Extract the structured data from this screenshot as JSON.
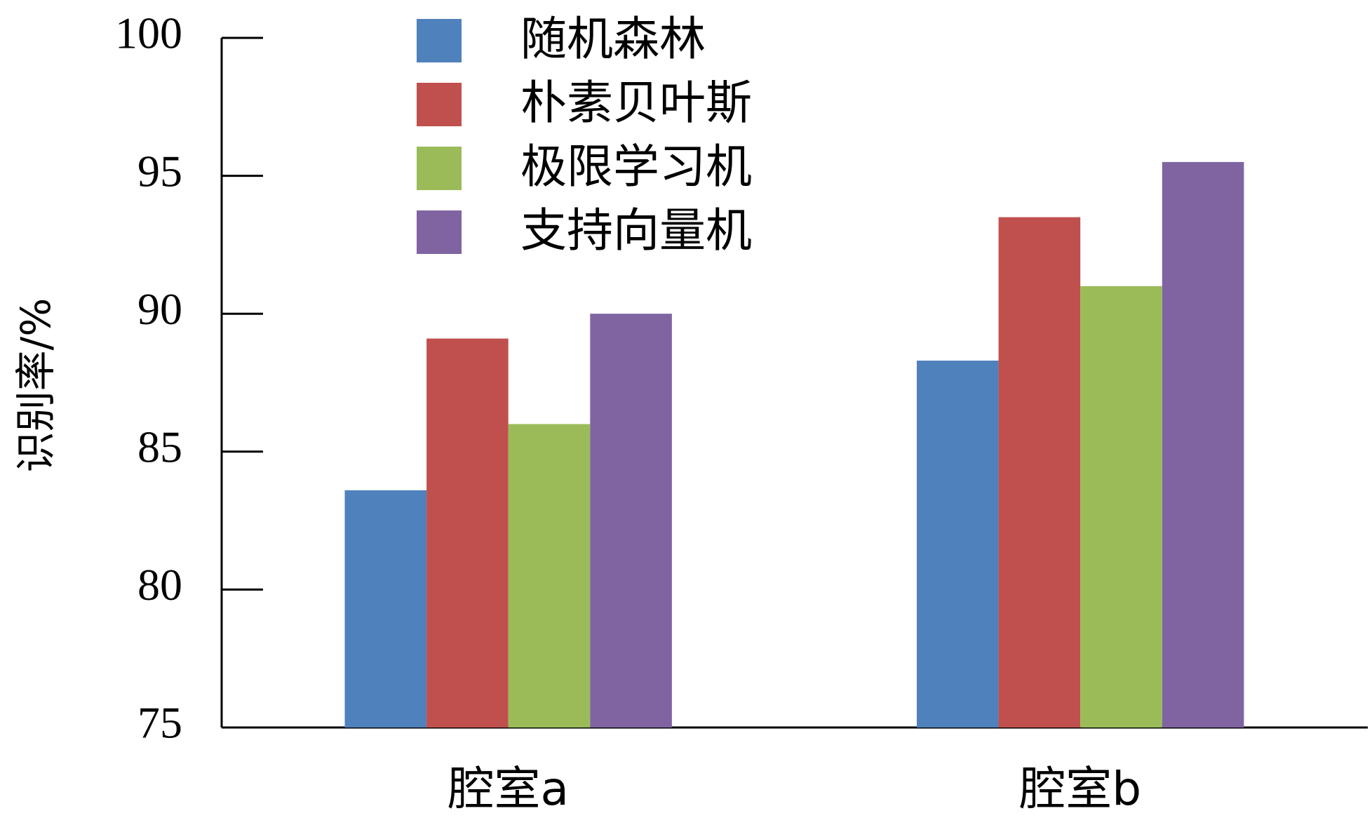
{
  "chart_data": {
    "type": "bar",
    "y_label": "识别率/%",
    "categories": [
      "腔室a",
      "腔室b"
    ],
    "series": [
      {
        "name": "随机森林",
        "color": "#4f81bd",
        "values": [
          83.6,
          88.3
        ]
      },
      {
        "name": "朴素贝叶斯",
        "color": "#c0504d",
        "values": [
          89.1,
          93.5
        ]
      },
      {
        "name": "极限学习机",
        "color": "#9bbb59",
        "values": [
          86.0,
          91.0
        ]
      },
      {
        "name": "支持向量机",
        "color": "#8064a2",
        "values": [
          90.0,
          95.5
        ]
      }
    ],
    "ylim": [
      75,
      100
    ],
    "yticks": [
      75,
      80,
      85,
      90,
      95,
      100
    ],
    "grid": false,
    "legend": "top-left"
  }
}
